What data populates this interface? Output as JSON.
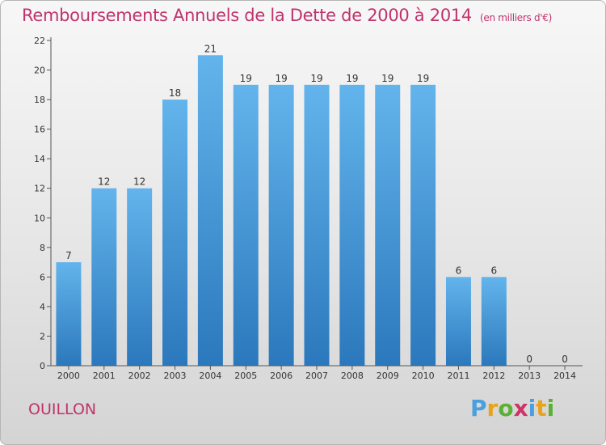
{
  "title": "Remboursements Annuels de la Dette de 2000 à 2014",
  "unit": "(en milliers d'€)",
  "commune": "OUILLON",
  "brand": {
    "letters": [
      "P",
      "r",
      "o",
      "x",
      "i",
      "t",
      "i"
    ],
    "colors": [
      "#4a9fdc",
      "#e8a31b",
      "#5cb033",
      "#cc3366",
      "#4a9fdc",
      "#e8a31b",
      "#5cb033"
    ]
  },
  "chart_data": {
    "type": "bar",
    "categories": [
      "2000",
      "2001",
      "2002",
      "2003",
      "2004",
      "2005",
      "2006",
      "2007",
      "2008",
      "2009",
      "2010",
      "2011",
      "2012",
      "2013",
      "2014"
    ],
    "values": [
      7,
      12,
      12,
      18,
      21,
      19,
      19,
      19,
      19,
      19,
      19,
      6,
      6,
      0,
      0
    ],
    "data_labels": [
      "7",
      "12",
      "12",
      "18",
      "21",
      "19",
      "19",
      "19",
      "19",
      "19",
      "19",
      "6",
      "6",
      "0",
      "0"
    ],
    "ylim": [
      0,
      22
    ],
    "yticks": [
      0,
      2,
      4,
      6,
      8,
      10,
      12,
      14,
      16,
      18,
      20,
      22
    ],
    "grid": false,
    "colors": {
      "bar_top": "#63b4ec",
      "bar_bottom": "#2b78bc",
      "axis": "#555555"
    }
  }
}
